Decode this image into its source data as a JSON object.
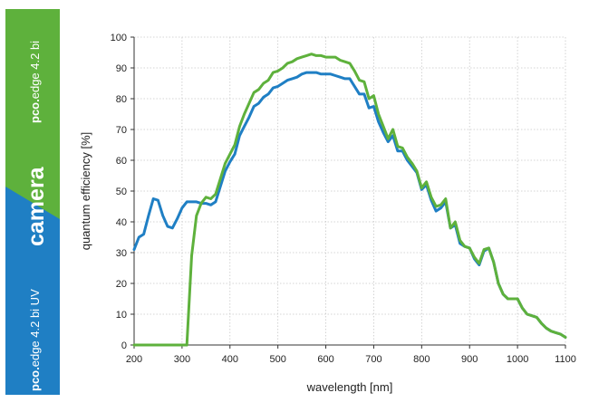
{
  "banner": {
    "top_product_prefix": "pco.",
    "top_product_name": "edge 4.2 bi",
    "center_word": "camera",
    "bottom_product_prefix": "pco.",
    "bottom_product_name": "edge 4.2 bi UV",
    "colors": {
      "green": "#5eb13c",
      "blue": "#1f7fc4"
    }
  },
  "chart_data": {
    "type": "line",
    "title": "",
    "xlabel": "wavelength [nm]",
    "ylabel": "quantum efficiency [%]",
    "xlim": [
      200,
      1100
    ],
    "ylim": [
      0,
      100
    ],
    "xticks": [
      200,
      300,
      400,
      500,
      600,
      700,
      800,
      900,
      1000,
      1100
    ],
    "yticks": [
      0,
      10,
      20,
      30,
      40,
      50,
      60,
      70,
      80,
      90,
      100
    ],
    "grid": true,
    "series": [
      {
        "name": "pco.edge 4.2 bi UV",
        "color": "#1f7fc4",
        "x": [
          200,
          210,
          220,
          230,
          240,
          250,
          260,
          270,
          280,
          290,
          300,
          310,
          320,
          330,
          340,
          350,
          360,
          370,
          380,
          390,
          400,
          410,
          420,
          430,
          440,
          450,
          460,
          470,
          480,
          490,
          500,
          510,
          520,
          530,
          540,
          550,
          560,
          570,
          580,
          590,
          600,
          610,
          620,
          630,
          640,
          650,
          660,
          670,
          680,
          690,
          700,
          710,
          720,
          730,
          740,
          750,
          760,
          770,
          780,
          790,
          800,
          810,
          820,
          830,
          840,
          850,
          860,
          870,
          880,
          890,
          900,
          910,
          920,
          930,
          940,
          950,
          960,
          970,
          980,
          990,
          1000,
          1010,
          1020,
          1030,
          1040,
          1050,
          1060,
          1070,
          1080,
          1090,
          1100
        ],
        "values": [
          31,
          35,
          36,
          42,
          47.5,
          47,
          42,
          38.5,
          38,
          41,
          44.5,
          46.5,
          46.5,
          46.5,
          46,
          46,
          45.5,
          46.5,
          51.5,
          56.5,
          59.5,
          62,
          68,
          71,
          74,
          77.5,
          78.5,
          80.5,
          81.5,
          83.5,
          84,
          85,
          86,
          86.5,
          87,
          88,
          88.5,
          88.5,
          88.5,
          88,
          88,
          88,
          87.5,
          87,
          86.5,
          86.5,
          84,
          81.5,
          81.5,
          77,
          77.5,
          72.5,
          69,
          66,
          68,
          63,
          63,
          60,
          58,
          56,
          50.5,
          52,
          47,
          43.5,
          44.5,
          46.5,
          38,
          39,
          33,
          32,
          31.5,
          28,
          26,
          30.5,
          31.5,
          27,
          20,
          16.5,
          15,
          15,
          15,
          12,
          10,
          9.5,
          9,
          7,
          5.5,
          4.5,
          4,
          3.5,
          2.5
        ]
      },
      {
        "name": "pco.edge 4.2 bi",
        "color": "#5eb13c",
        "x": [
          200,
          210,
          220,
          230,
          240,
          250,
          260,
          270,
          280,
          290,
          300,
          310,
          320,
          330,
          340,
          350,
          360,
          370,
          380,
          390,
          400,
          410,
          420,
          430,
          440,
          450,
          460,
          470,
          480,
          490,
          500,
          510,
          520,
          530,
          540,
          550,
          560,
          570,
          580,
          590,
          600,
          610,
          620,
          630,
          640,
          650,
          660,
          670,
          680,
          690,
          700,
          710,
          720,
          730,
          740,
          750,
          760,
          770,
          780,
          790,
          800,
          810,
          820,
          830,
          840,
          850,
          860,
          870,
          880,
          890,
          900,
          910,
          920,
          930,
          940,
          950,
          960,
          970,
          980,
          990,
          1000,
          1010,
          1020,
          1030,
          1040,
          1050,
          1060,
          1070,
          1080,
          1090,
          1100
        ],
        "values": [
          0,
          0,
          0,
          0,
          0,
          0,
          0,
          0,
          0,
          0,
          0,
          0,
          29,
          42,
          46,
          48,
          47.5,
          49,
          54,
          59,
          62,
          65,
          71,
          75,
          78.5,
          82,
          83,
          85,
          86,
          88.5,
          89,
          90,
          91.5,
          92,
          93,
          93.5,
          94,
          94.5,
          94,
          94,
          93.5,
          93.5,
          93.5,
          92.5,
          92,
          91.5,
          89,
          86,
          85.5,
          80,
          81,
          75,
          71,
          67,
          70,
          64.5,
          64,
          61,
          59,
          56.5,
          51,
          53,
          48,
          45,
          45.5,
          47.5,
          38,
          40,
          34,
          32,
          31.5,
          28.5,
          26.5,
          31,
          31.5,
          27,
          20,
          16.5,
          15,
          15,
          15,
          12,
          10,
          9.5,
          9,
          7,
          5.5,
          4.5,
          4,
          3.5,
          2.5
        ]
      }
    ]
  }
}
